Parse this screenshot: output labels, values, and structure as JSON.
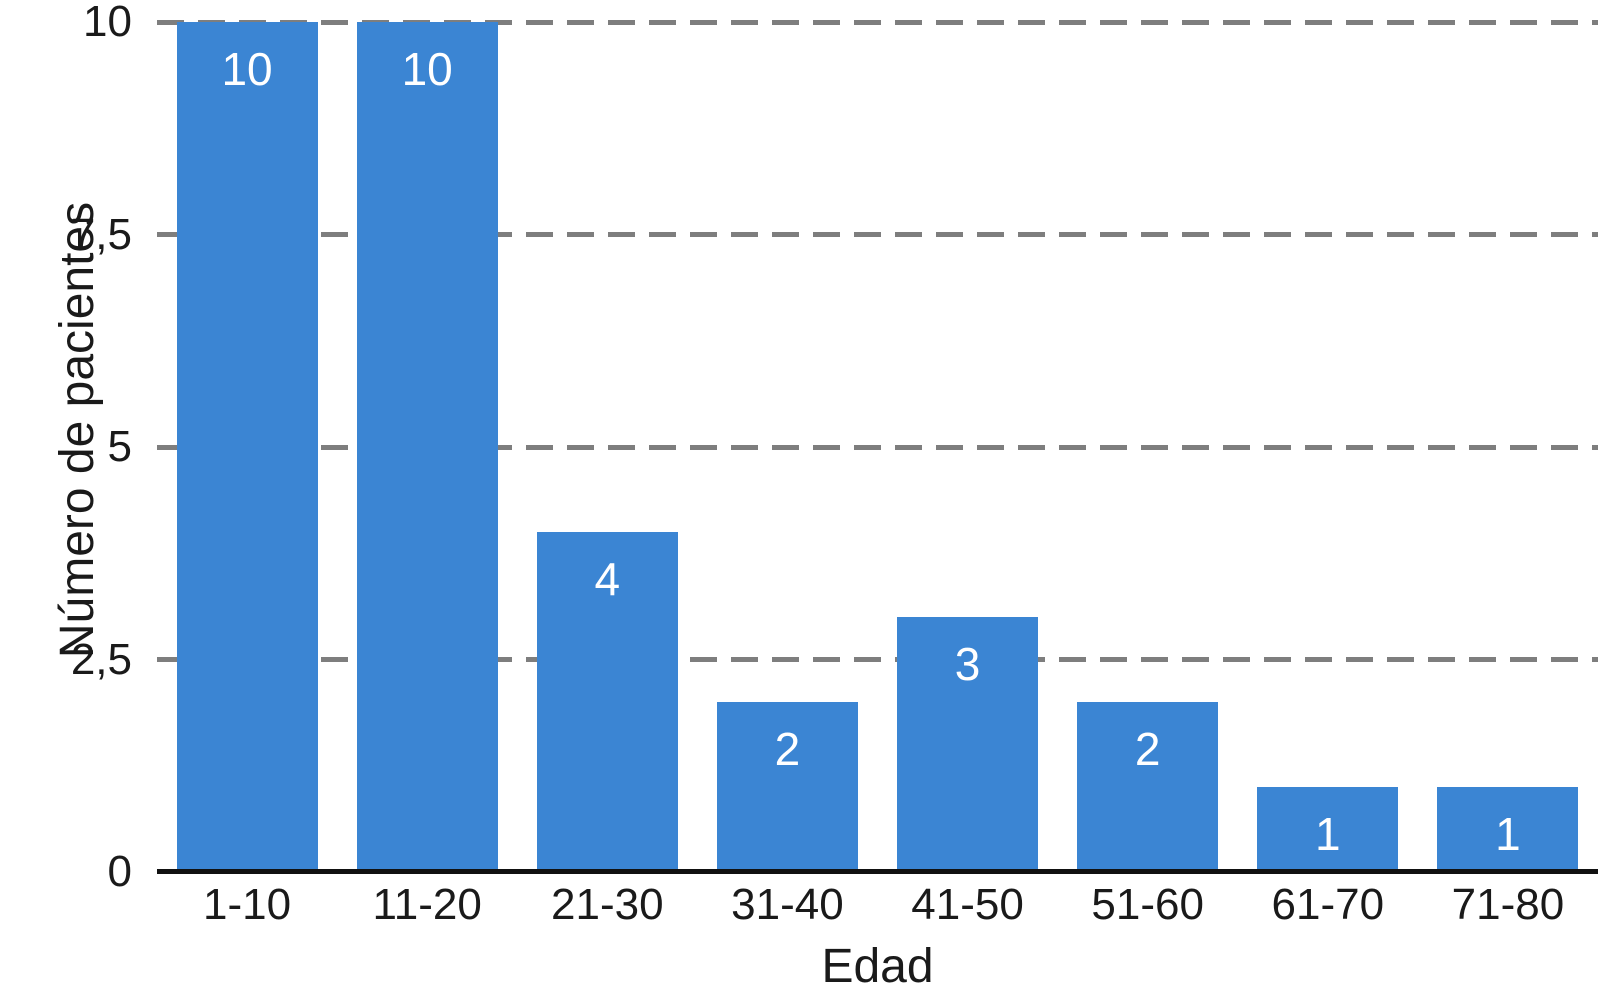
{
  "chart_data": {
    "type": "bar",
    "title": "",
    "xlabel": "Edad",
    "ylabel": "Número de pacientes",
    "categories": [
      "1-10",
      "11-20",
      "21-30",
      "31-40",
      "41-50",
      "51-60",
      "61-70",
      "71-80"
    ],
    "values": [
      10,
      10,
      4,
      2,
      3,
      2,
      1,
      1
    ],
    "value_labels": [
      "10",
      "10",
      "4",
      "2",
      "3",
      "2",
      "1",
      "1"
    ],
    "yticks": [
      {
        "value": 0,
        "label": "0"
      },
      {
        "value": 2.5,
        "label": "2,5"
      },
      {
        "value": 5,
        "label": "5"
      },
      {
        "value": 7.5,
        "label": "7,5"
      },
      {
        "value": 10,
        "label": "10"
      }
    ],
    "ylim": [
      0,
      10
    ],
    "grid": "horizontal-dashed",
    "legend": "none",
    "colors": {
      "bar": "#3b85d3",
      "gridline": "#7e7e7e",
      "axis_line": "#111111",
      "text": "#1a1a1a",
      "value_label": "#ffffff",
      "background": "#ffffff"
    }
  }
}
